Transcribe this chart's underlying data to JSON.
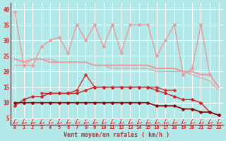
{
  "xlabel": "Vent moyen/en rafales ( km/h )",
  "background_color": "#b2e8e8",
  "grid_color": "#c8e8e8",
  "x": [
    0,
    1,
    2,
    3,
    4,
    5,
    6,
    7,
    8,
    9,
    10,
    11,
    12,
    13,
    14,
    15,
    16,
    17,
    18,
    19,
    20,
    21,
    22,
    23
  ],
  "line1_jagged_light": {
    "values": [
      39,
      22,
      22,
      28,
      30,
      31,
      26,
      35,
      30,
      35,
      28,
      35,
      26,
      35,
      35,
      35,
      25,
      30,
      35,
      19,
      21,
      35,
      19,
      null
    ],
    "color": "#ee9999",
    "marker": "D",
    "markersize": 2.5,
    "linewidth": 1.0
  },
  "line2_smooth_light": {
    "values": [
      24,
      23,
      24,
      24,
      23,
      23,
      23,
      23,
      23,
      22,
      22,
      22,
      22,
      22,
      22,
      22,
      21,
      21,
      21,
      20,
      20,
      19,
      19,
      15
    ],
    "color": "#ee9999",
    "marker": null,
    "linewidth": 1.5
  },
  "line3_smooth_light2": {
    "values": [
      22,
      22,
      24,
      24,
      24,
      23,
      23,
      23,
      23,
      22,
      22,
      21,
      21,
      21,
      21,
      21,
      20,
      20,
      20,
      20,
      19,
      18,
      17,
      14
    ],
    "color": "#ddaaaa",
    "marker": null,
    "linewidth": 1.0
  },
  "line4_dark_mid": {
    "values": [
      null,
      null,
      null,
      13,
      13,
      13,
      13,
      14,
      19,
      15,
      15,
      15,
      15,
      15,
      15,
      15,
      15,
      14,
      14,
      null,
      null,
      null,
      null,
      null
    ],
    "color": "#cc3333",
    "marker": "D",
    "markersize": 2.5,
    "linewidth": 1.0
  },
  "line5_dark_lower": {
    "values": [
      9,
      11,
      12,
      12,
      13,
      13,
      13,
      13,
      14,
      15,
      15,
      15,
      15,
      15,
      15,
      15,
      14,
      13,
      12,
      11,
      11,
      10,
      7,
      6
    ],
    "color": "#cc2222",
    "marker": "D",
    "markersize": 2.5,
    "linewidth": 1.0
  },
  "line6_dark_bottom": {
    "values": [
      10,
      10,
      10,
      10,
      10,
      10,
      10,
      10,
      10,
      10,
      10,
      10,
      10,
      10,
      10,
      10,
      9,
      9,
      9,
      8,
      8,
      7,
      7,
      6
    ],
    "color": "#880000",
    "marker": "D",
    "markersize": 2.5,
    "linewidth": 1.2
  },
  "ylim": [
    3,
    42
  ],
  "yticks": [
    5,
    10,
    15,
    20,
    25,
    30,
    35,
    40
  ],
  "arrow_color": "#cc2222",
  "tick_color": "#cc2222"
}
